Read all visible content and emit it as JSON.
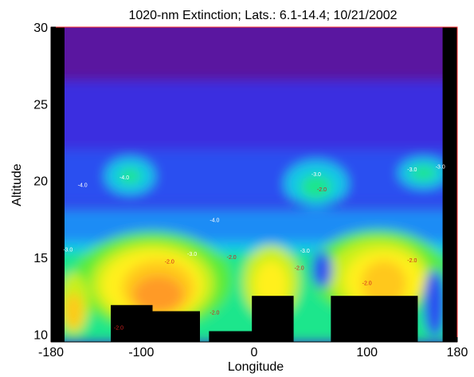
{
  "chart_data": {
    "type": "heatmap",
    "title": "1020-nm Extinction;   Lats.: 6.1-14.4;   10/21/2002",
    "xlabel": "Longitude",
    "ylabel": "Altitude",
    "xlim": [
      -180,
      180
    ],
    "ylim": [
      9.5,
      30
    ],
    "x_ticks": [
      -180,
      -100,
      0,
      100,
      180
    ],
    "x_tick_labels": [
      "-180",
      "-100",
      "0",
      "100",
      "180"
    ],
    "y_ticks": [
      10,
      15,
      20,
      25,
      30
    ],
    "y_tick_labels": [
      "10",
      "15",
      "20",
      "25",
      "30"
    ],
    "colormap": [
      "#5a14a0",
      "#3a2de0",
      "#2a50f0",
      "#1a8cf5",
      "#12c8e6",
      "#1ee68c",
      "#5aeb37",
      "#c8f01e",
      "#fff01e",
      "#ffc81a",
      "#ff9a28"
    ],
    "contour_labels": [
      {
        "text": "-4.0",
        "lon": -115,
        "alt": 20.1,
        "color": "#ffffff"
      },
      {
        "text": "-4.0",
        "lon": -152,
        "alt": 19.6,
        "color": "#ffffff"
      },
      {
        "text": "-4.0",
        "lon": -35,
        "alt": 17.3,
        "color": "#ffffff"
      },
      {
        "text": "-3.0",
        "lon": 55,
        "alt": 20.3,
        "color": "#ffffff"
      },
      {
        "text": "-2.0",
        "lon": 60,
        "alt": 19.3,
        "color": "#d02020"
      },
      {
        "text": "-3.0",
        "lon": 140,
        "alt": 20.6,
        "color": "#ffffff"
      },
      {
        "text": "-3.0",
        "lon": 165,
        "alt": 20.8,
        "color": "#ffffff"
      },
      {
        "text": "-3.0",
        "lon": -165,
        "alt": 15.4,
        "color": "#ffffff"
      },
      {
        "text": "-3.0",
        "lon": -55,
        "alt": 15.1,
        "color": "#ffffff"
      },
      {
        "text": "-2.0",
        "lon": -75,
        "alt": 14.6,
        "color": "#d02020"
      },
      {
        "text": "-2.0",
        "lon": -20,
        "alt": 14.9,
        "color": "#d02020"
      },
      {
        "text": "-2.0",
        "lon": -35,
        "alt": 11.3,
        "color": "#d02020"
      },
      {
        "text": "-2.0",
        "lon": -120,
        "alt": 10.3,
        "color": "#d02020"
      },
      {
        "text": "-2.0",
        "lon": 40,
        "alt": 14.2,
        "color": "#d02020"
      },
      {
        "text": "-3.0",
        "lon": 45,
        "alt": 15.3,
        "color": "#ffffff"
      },
      {
        "text": "-2.0",
        "lon": 140,
        "alt": 14.7,
        "color": "#d02020"
      },
      {
        "text": "-2.0",
        "lon": 100,
        "alt": 13.2,
        "color": "#d02020"
      }
    ],
    "no_data_regions": [
      {
        "lon": [
          -180,
          -168
        ],
        "alt": [
          9.5,
          30
        ]
      },
      {
        "lon": [
          167,
          180
        ],
        "alt": [
          9.5,
          30
        ]
      },
      {
        "lon": [
          -127,
          -90
        ],
        "alt": [
          9.5,
          11.9
        ]
      },
      {
        "lon": [
          -90,
          -48
        ],
        "alt": [
          9.5,
          11.5
        ]
      },
      {
        "lon": [
          -40,
          2
        ],
        "alt": [
          9.5,
          10.2
        ]
      },
      {
        "lon": [
          -2,
          35
        ],
        "alt": [
          9.5,
          12.5
        ]
      },
      {
        "lon": [
          68,
          145
        ],
        "alt": [
          9.5,
          12.5
        ]
      }
    ],
    "missing_column_alt_range": [
      9.5,
      30
    ]
  }
}
